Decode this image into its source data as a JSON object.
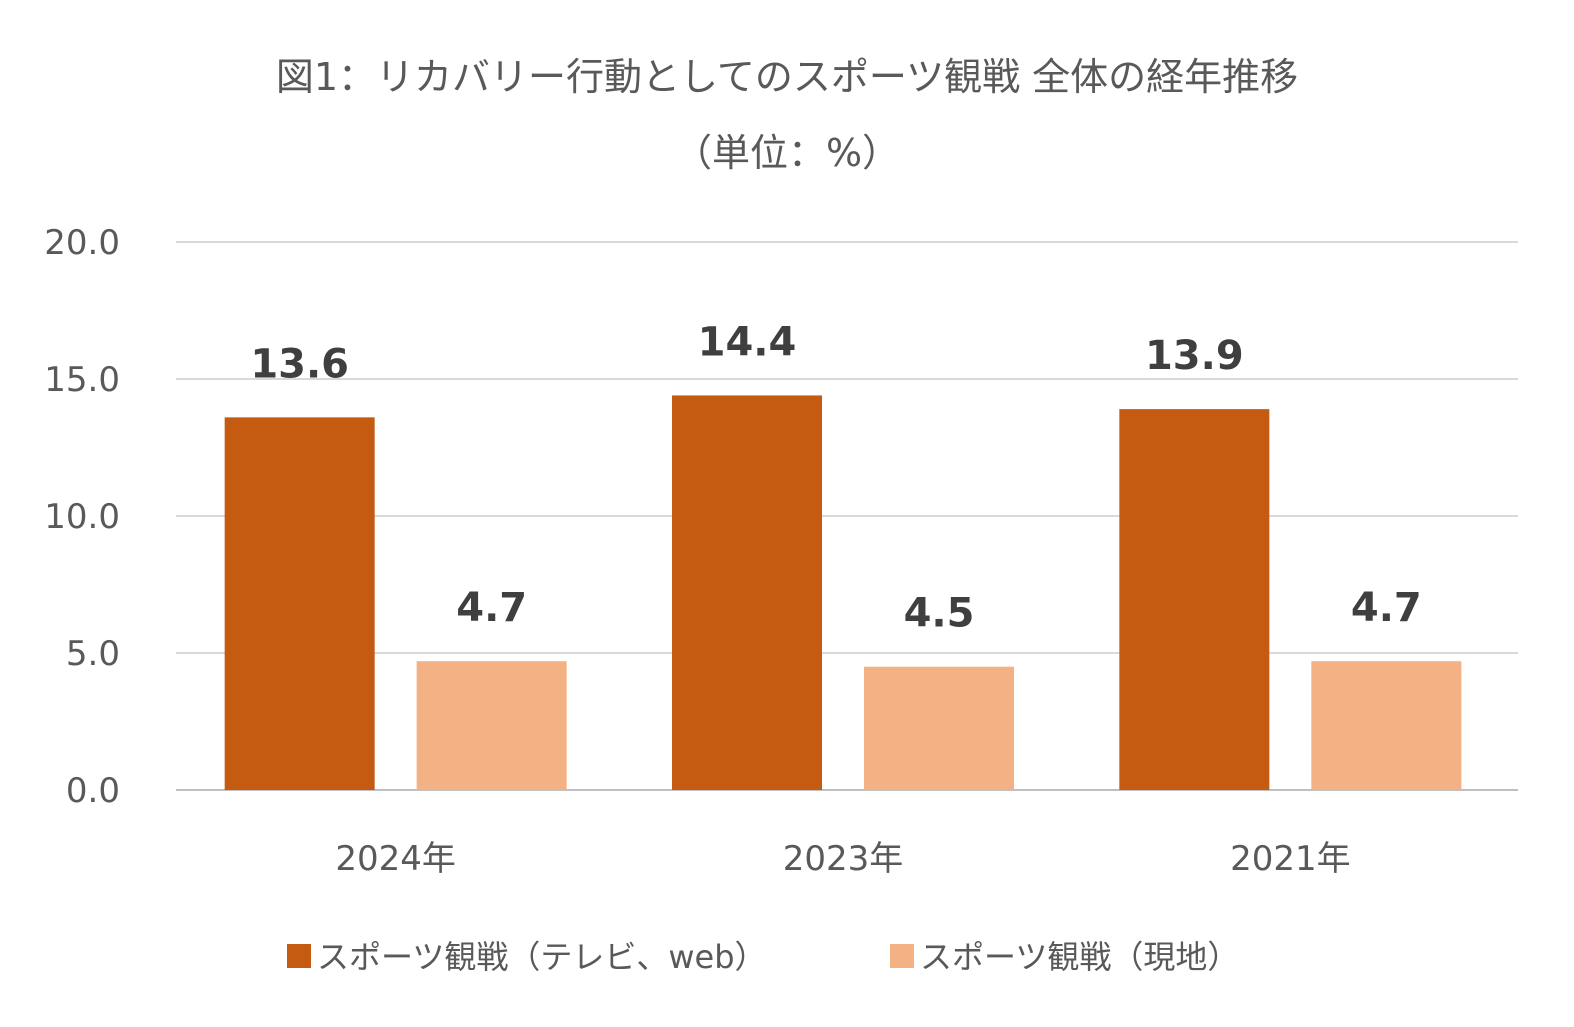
{
  "chart_data": {
    "type": "bar",
    "title": "図1：リカバリー行動としてのスポーツ観戦 全体の経年推移",
    "subtitle": "（単位：%）",
    "categories": [
      "2024年",
      "2023年",
      "2021年"
    ],
    "series": [
      {
        "name": "スポーツ観戦（テレビ、web）",
        "values": [
          13.6,
          14.4,
          13.9
        ],
        "labels": [
          "13.6",
          "14.4",
          "13.9"
        ],
        "color": "#c55a11"
      },
      {
        "name": "スポーツ観戦（現地）",
        "values": [
          4.7,
          4.5,
          4.7
        ],
        "labels": [
          "4.7",
          "4.5",
          "4.7"
        ],
        "color": "#f4b183"
      }
    ],
    "ylim": [
      0,
      20
    ],
    "yticks": [
      0,
      5,
      10,
      15,
      20
    ],
    "ytick_labels": [
      "0.0",
      "5.0",
      "10.0",
      "15.0",
      "20.0"
    ],
    "grid": true,
    "legend_position": "bottom",
    "gridline_color": "#d9d9d9",
    "axis_line_color": "#bfbfbf"
  }
}
